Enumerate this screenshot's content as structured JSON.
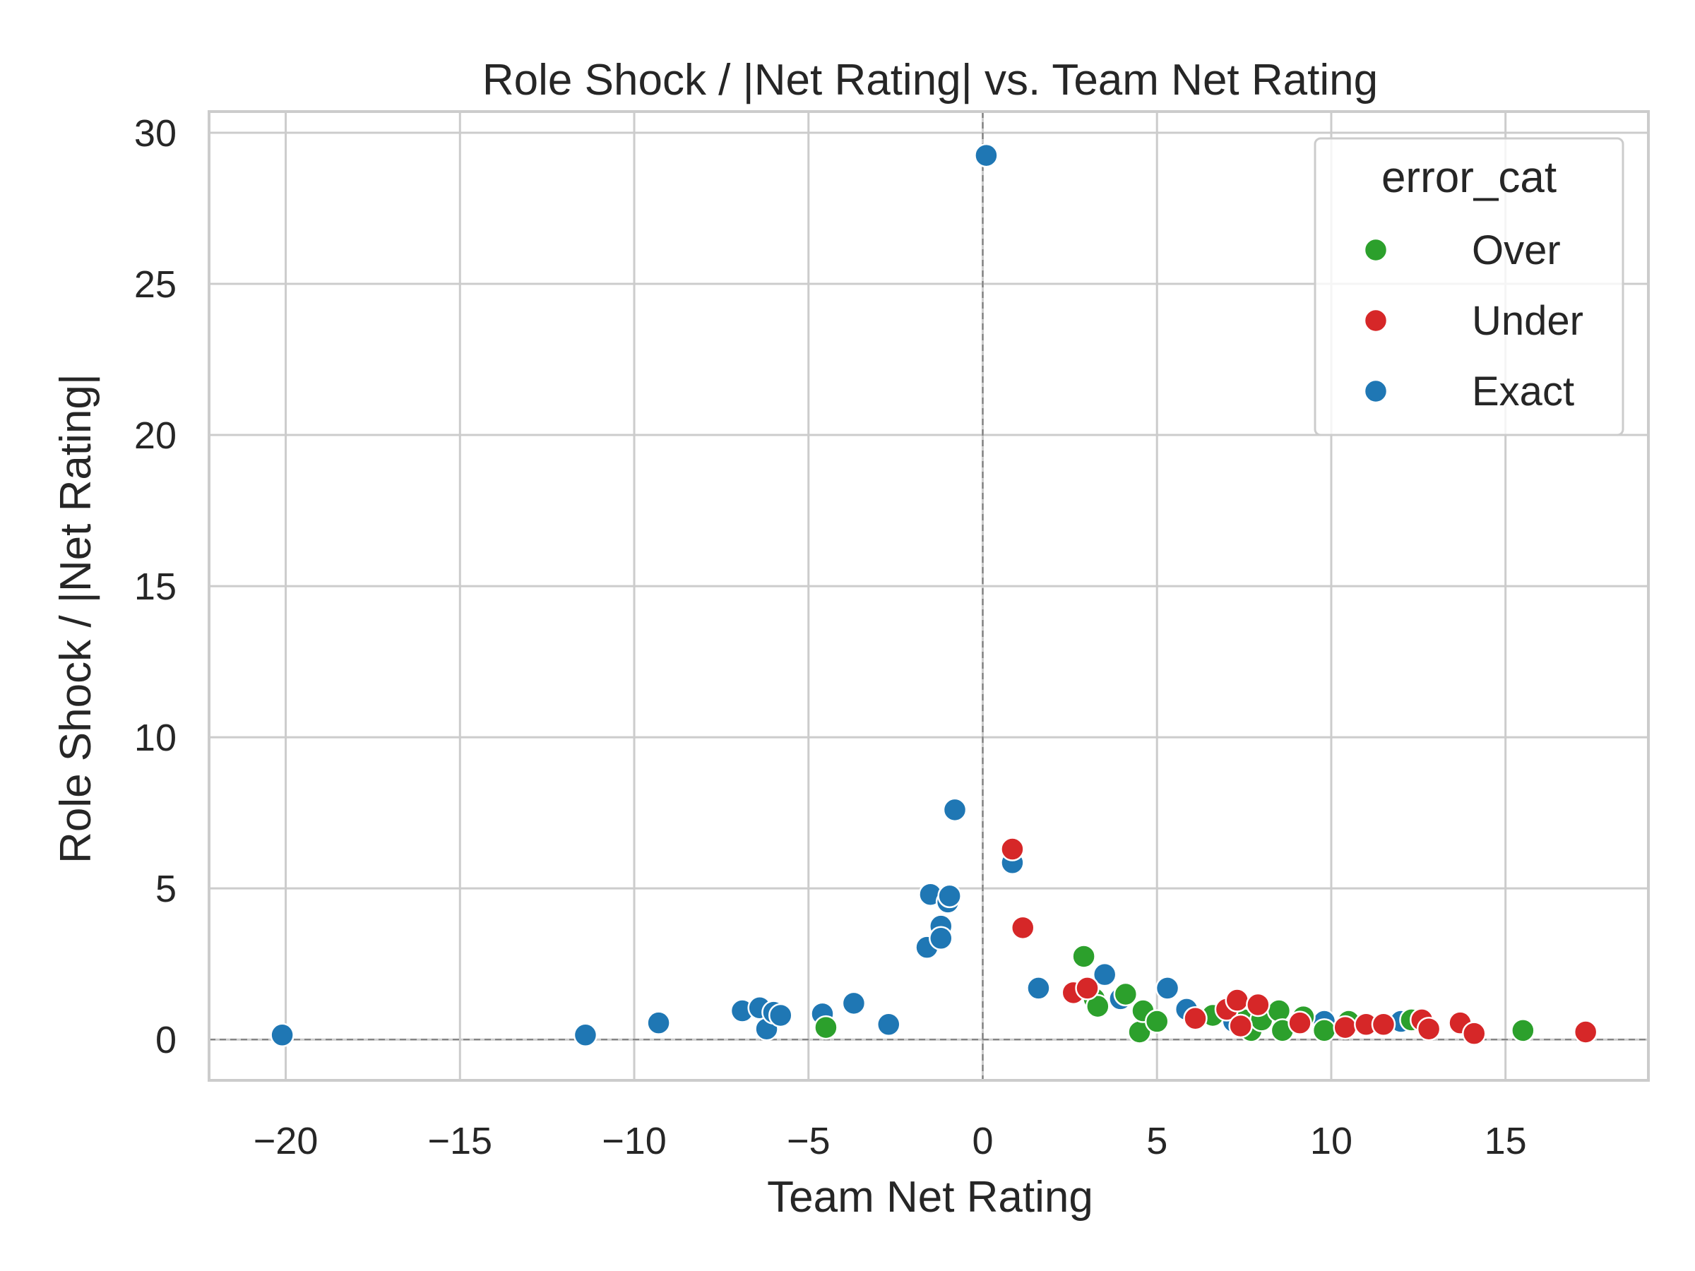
{
  "chart_data": {
    "type": "scatter",
    "title": "Role Shock / |Net Rating| vs. Team Net Rating",
    "xlabel": "Team Net Rating",
    "ylabel": "Role Shock / |Net Rating|",
    "xlim": [
      -22.2,
      19.1
    ],
    "ylim": [
      -1.35,
      30.7
    ],
    "xticks": [
      -20,
      -15,
      -10,
      -5,
      0,
      5,
      10,
      15
    ],
    "xtick_labels": [
      "−20",
      "−15",
      "−10",
      "−5",
      "0",
      "5",
      "10",
      "15"
    ],
    "yticks": [
      0,
      5,
      10,
      15,
      20,
      25,
      30
    ],
    "ytick_labels": [
      "0",
      "5",
      "10",
      "15",
      "20",
      "25",
      "30"
    ],
    "grid": true,
    "reference_lines": {
      "x": 0,
      "y": 0
    },
    "legend": {
      "title": "error_cat",
      "placement": "top-right",
      "entries": [
        "Over",
        "Under",
        "Exact"
      ]
    },
    "colors": {
      "Over": "#2ca02c",
      "Under": "#d62728",
      "Exact": "#1f77b4"
    },
    "series": [
      {
        "name": "Exact",
        "points": [
          [
            -20.1,
            0.15
          ],
          [
            -11.4,
            0.15
          ],
          [
            -9.3,
            0.55
          ],
          [
            -6.9,
            0.95
          ],
          [
            -6.4,
            1.05
          ],
          [
            -6.2,
            0.35
          ],
          [
            -6.0,
            0.9
          ],
          [
            -5.8,
            0.8
          ],
          [
            -4.6,
            0.85
          ],
          [
            -3.7,
            1.2
          ],
          [
            -2.7,
            0.5
          ],
          [
            -1.6,
            3.05
          ],
          [
            -1.5,
            4.8
          ],
          [
            -1.2,
            3.75
          ],
          [
            -1.2,
            3.35
          ],
          [
            -1.0,
            4.55
          ],
          [
            -0.95,
            4.75
          ],
          [
            -0.8,
            7.6
          ],
          [
            0.1,
            29.25
          ],
          [
            0.85,
            5.85
          ],
          [
            1.6,
            1.7
          ],
          [
            3.0,
            1.75
          ],
          [
            3.5,
            2.15
          ],
          [
            3.95,
            1.35
          ],
          [
            5.3,
            1.7
          ],
          [
            5.85,
            1.0
          ],
          [
            7.2,
            0.6
          ],
          [
            9.8,
            0.6
          ],
          [
            12.0,
            0.6
          ]
        ]
      },
      {
        "name": "Over",
        "points": [
          [
            -4.5,
            0.4
          ],
          [
            2.9,
            2.75
          ],
          [
            3.2,
            1.35
          ],
          [
            3.3,
            1.1
          ],
          [
            4.1,
            1.5
          ],
          [
            4.5,
            0.25
          ],
          [
            4.6,
            0.95
          ],
          [
            5.0,
            0.6
          ],
          [
            6.6,
            0.8
          ],
          [
            7.5,
            0.65
          ],
          [
            7.7,
            0.3
          ],
          [
            8.0,
            0.65
          ],
          [
            8.5,
            0.95
          ],
          [
            8.6,
            0.3
          ],
          [
            9.2,
            0.75
          ],
          [
            9.8,
            0.3
          ],
          [
            10.5,
            0.6
          ],
          [
            12.3,
            0.65
          ],
          [
            15.5,
            0.3
          ]
        ]
      },
      {
        "name": "Under",
        "points": [
          [
            0.85,
            6.3
          ],
          [
            1.15,
            3.7
          ],
          [
            2.6,
            1.55
          ],
          [
            3.0,
            1.7
          ],
          [
            6.1,
            0.7
          ],
          [
            7.0,
            1.0
          ],
          [
            7.3,
            1.3
          ],
          [
            7.4,
            0.45
          ],
          [
            7.9,
            1.15
          ],
          [
            9.1,
            0.55
          ],
          [
            10.4,
            0.4
          ],
          [
            11.0,
            0.5
          ],
          [
            11.5,
            0.5
          ],
          [
            12.6,
            0.65
          ],
          [
            12.8,
            0.35
          ],
          [
            13.7,
            0.55
          ],
          [
            14.1,
            0.2
          ],
          [
            17.3,
            0.25
          ]
        ]
      }
    ]
  }
}
